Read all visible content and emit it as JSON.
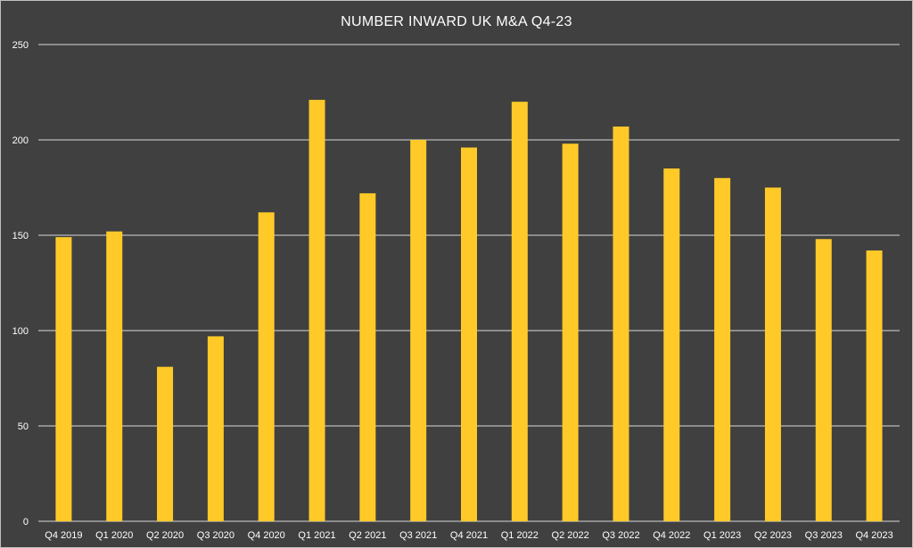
{
  "chart_data": {
    "type": "bar",
    "title": "NUMBER INWARD UK M&A Q4-23",
    "xlabel": "",
    "ylabel": "",
    "ylim": [
      0,
      250
    ],
    "yticks": [
      "0",
      "50",
      "100",
      "150",
      "200",
      "250"
    ],
    "grid": true,
    "legend": "none",
    "categories": [
      "Q4 2019",
      "Q1 2020",
      "Q2 2020",
      "Q3 2020",
      "Q4 2020",
      "Q1 2021",
      "Q2 2021",
      "Q3 2021",
      "Q4 2021",
      "Q1 2022",
      "Q2 2022",
      "Q3 2022",
      "Q4 2022",
      "Q1 2023",
      "Q2 2023",
      "Q3 2023",
      "Q4 2023"
    ],
    "values": [
      149,
      152,
      81,
      97,
      162,
      221,
      172,
      200,
      196,
      220,
      198,
      207,
      185,
      180,
      175,
      148,
      142
    ]
  },
  "colors": {
    "background": "#404040",
    "bar": "#ffca28",
    "gridline": "#d9d9d9",
    "text": "#ffffff"
  }
}
